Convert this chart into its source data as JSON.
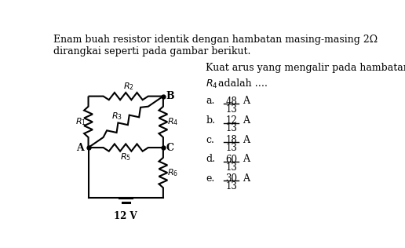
{
  "title_line1": "Enam buah resistor identik dengan hambatan masing-masing 2Ω",
  "title_line2": "dirangkai seperti pada gambar berikut.",
  "right_text_line1": "Kuat arus yang mengalir pada hambatan",
  "options": [
    {
      "label": "a.",
      "num": "48",
      "den": "13"
    },
    {
      "label": "b.",
      "num": "12",
      "den": "13"
    },
    {
      "label": "c.",
      "num": "18",
      "den": "13"
    },
    {
      "label": "d.",
      "num": "60",
      "den": "13"
    },
    {
      "label": "e.",
      "num": "30",
      "den": "13"
    }
  ],
  "bg_color": "#ffffff",
  "text_color": "#000000",
  "voltage": "12 V"
}
